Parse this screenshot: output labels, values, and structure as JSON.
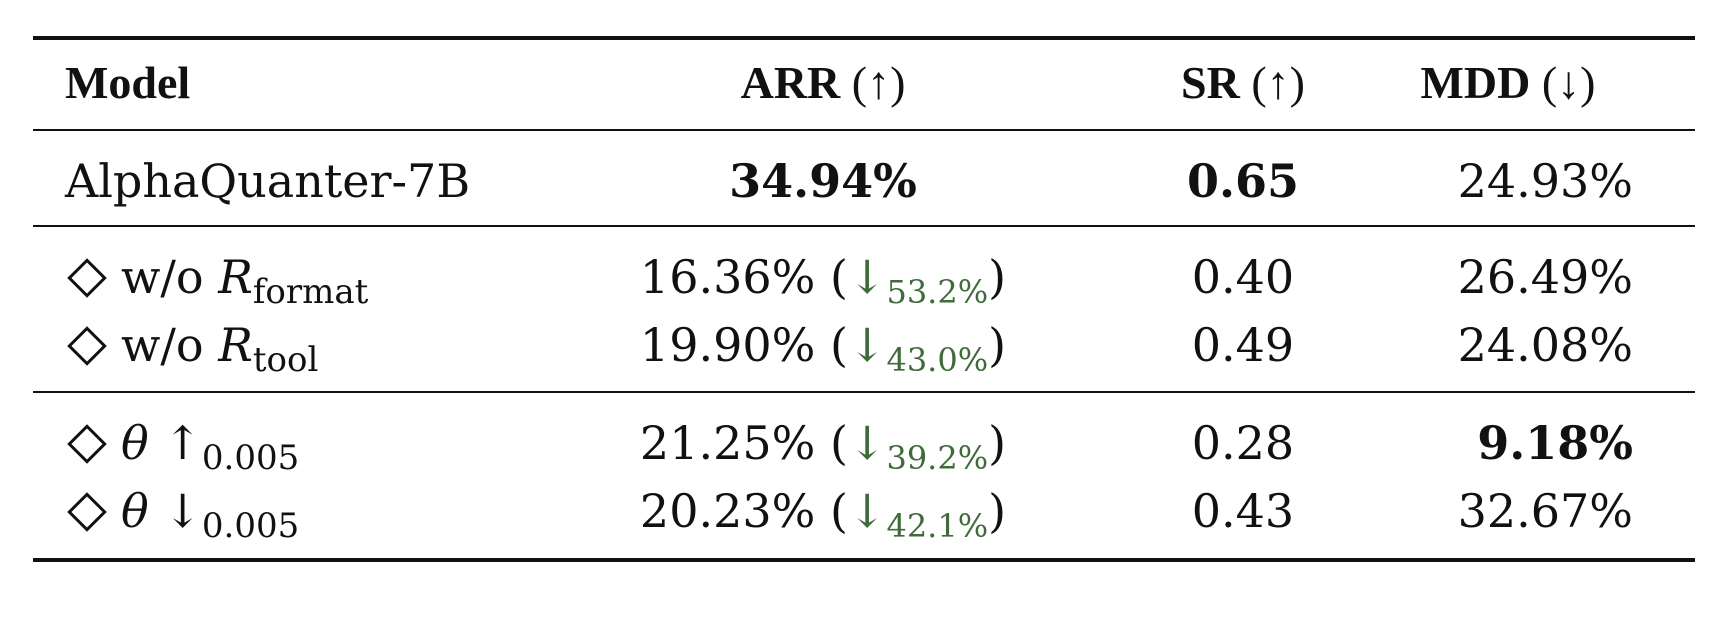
{
  "header": {
    "model": "Model",
    "arr": "ARR",
    "arr_arrow": "(↑)",
    "sr": "SR",
    "sr_arrow": "(↑)",
    "mdd": "MDD",
    "mdd_arrow": "(↓)"
  },
  "rows": [
    {
      "model": "AlphaQuanter-7B",
      "arr": "34.94%",
      "sr": "0.65",
      "mdd": "24.93%"
    },
    {
      "prefix": "w/o",
      "symbol": "R",
      "subscript": "format",
      "arr": "16.36%",
      "arr_change": "53.2%",
      "sr": "0.40",
      "mdd": "26.49%"
    },
    {
      "prefix": "w/o",
      "symbol": "R",
      "subscript": "tool",
      "arr": "19.90%",
      "arr_change": "43.0%",
      "sr": "0.49",
      "mdd": "24.08%"
    },
    {
      "symbol": "θ",
      "arrow": "↑",
      "subscript": "0.005",
      "arr": "21.25%",
      "arr_change": "39.2%",
      "sr": "0.28",
      "mdd": "9.18%"
    },
    {
      "symbol": "θ",
      "arrow": "↓",
      "subscript": "0.005",
      "arr": "20.23%",
      "arr_change": "42.1%",
      "sr": "0.43",
      "mdd": "32.67%"
    }
  ],
  "colors": {
    "text": "#111111",
    "improvement_delta": "#3f6b3a"
  }
}
